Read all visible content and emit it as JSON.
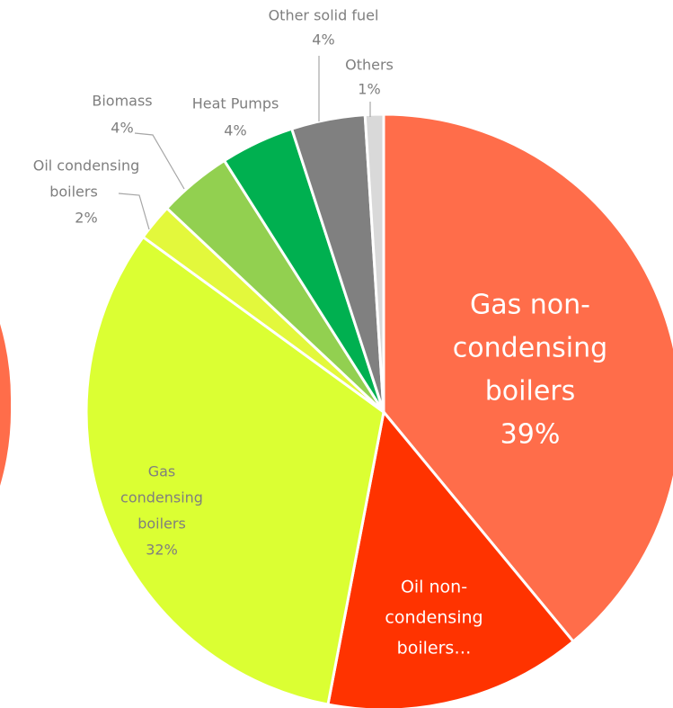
{
  "chart_data": {
    "type": "pie",
    "labels": [
      [
        "Gas non-",
        "condensing",
        "boilers"
      ],
      [
        "Oil non-",
        "condensing",
        "boilers…"
      ],
      [
        "Gas",
        "condensing",
        "boilers"
      ],
      [
        "Oil condensing",
        "boilers"
      ],
      [
        "Biomass"
      ],
      [
        "Heat Pumps"
      ],
      [
        "Other solid fuel"
      ],
      [
        "Others"
      ]
    ],
    "values": [
      39,
      14,
      32,
      2,
      4,
      4,
      4,
      1
    ],
    "value_labels": [
      "39%",
      null,
      "32%",
      "2%",
      "4%",
      "4%",
      "4%",
      "1%"
    ],
    "colors": [
      "#ff6d4a",
      "#ff3300",
      "#dbff33",
      "#e3f83c",
      "#92d050",
      "#00b050",
      "#808080",
      "#d9d9d9"
    ]
  }
}
